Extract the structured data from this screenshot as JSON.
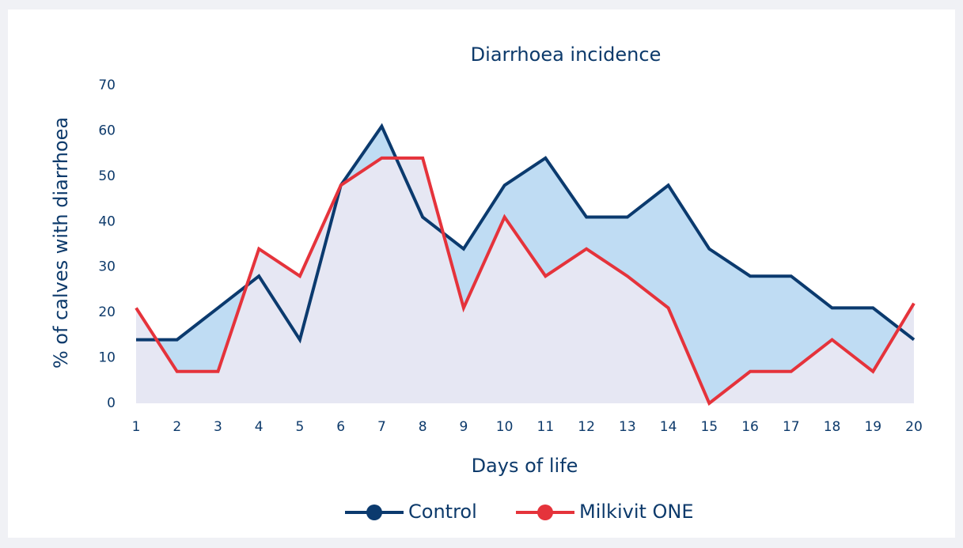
{
  "chart_data": {
    "type": "area-line",
    "title": "Diarrhoea incidence",
    "xlabel": "Days of life",
    "ylabel": "% of calves with diarrhoea",
    "x": [
      1,
      2,
      3,
      4,
      5,
      6,
      7,
      8,
      9,
      10,
      11,
      12,
      13,
      14,
      15,
      16,
      17,
      18,
      19,
      20
    ],
    "xlim": [
      1,
      20
    ],
    "ylim": [
      0,
      70
    ],
    "yticks": [
      0,
      10,
      20,
      30,
      40,
      50,
      60,
      70
    ],
    "series": [
      {
        "name": "Control",
        "color": "#0b3a6e",
        "fill": "#bfdcf3",
        "values": [
          14,
          14,
          21,
          28,
          14,
          48,
          61,
          41,
          34,
          48,
          54,
          41,
          41,
          48,
          34,
          28,
          28,
          21,
          21,
          14
        ]
      },
      {
        "name": "Milkivit ONE",
        "color": "#e5333b",
        "fill": "#e6e7f3",
        "values": [
          21,
          7,
          7,
          34,
          28,
          48,
          54,
          54,
          21,
          41,
          28,
          34,
          28,
          21,
          0,
          7,
          7,
          14,
          7,
          22
        ]
      }
    ]
  }
}
